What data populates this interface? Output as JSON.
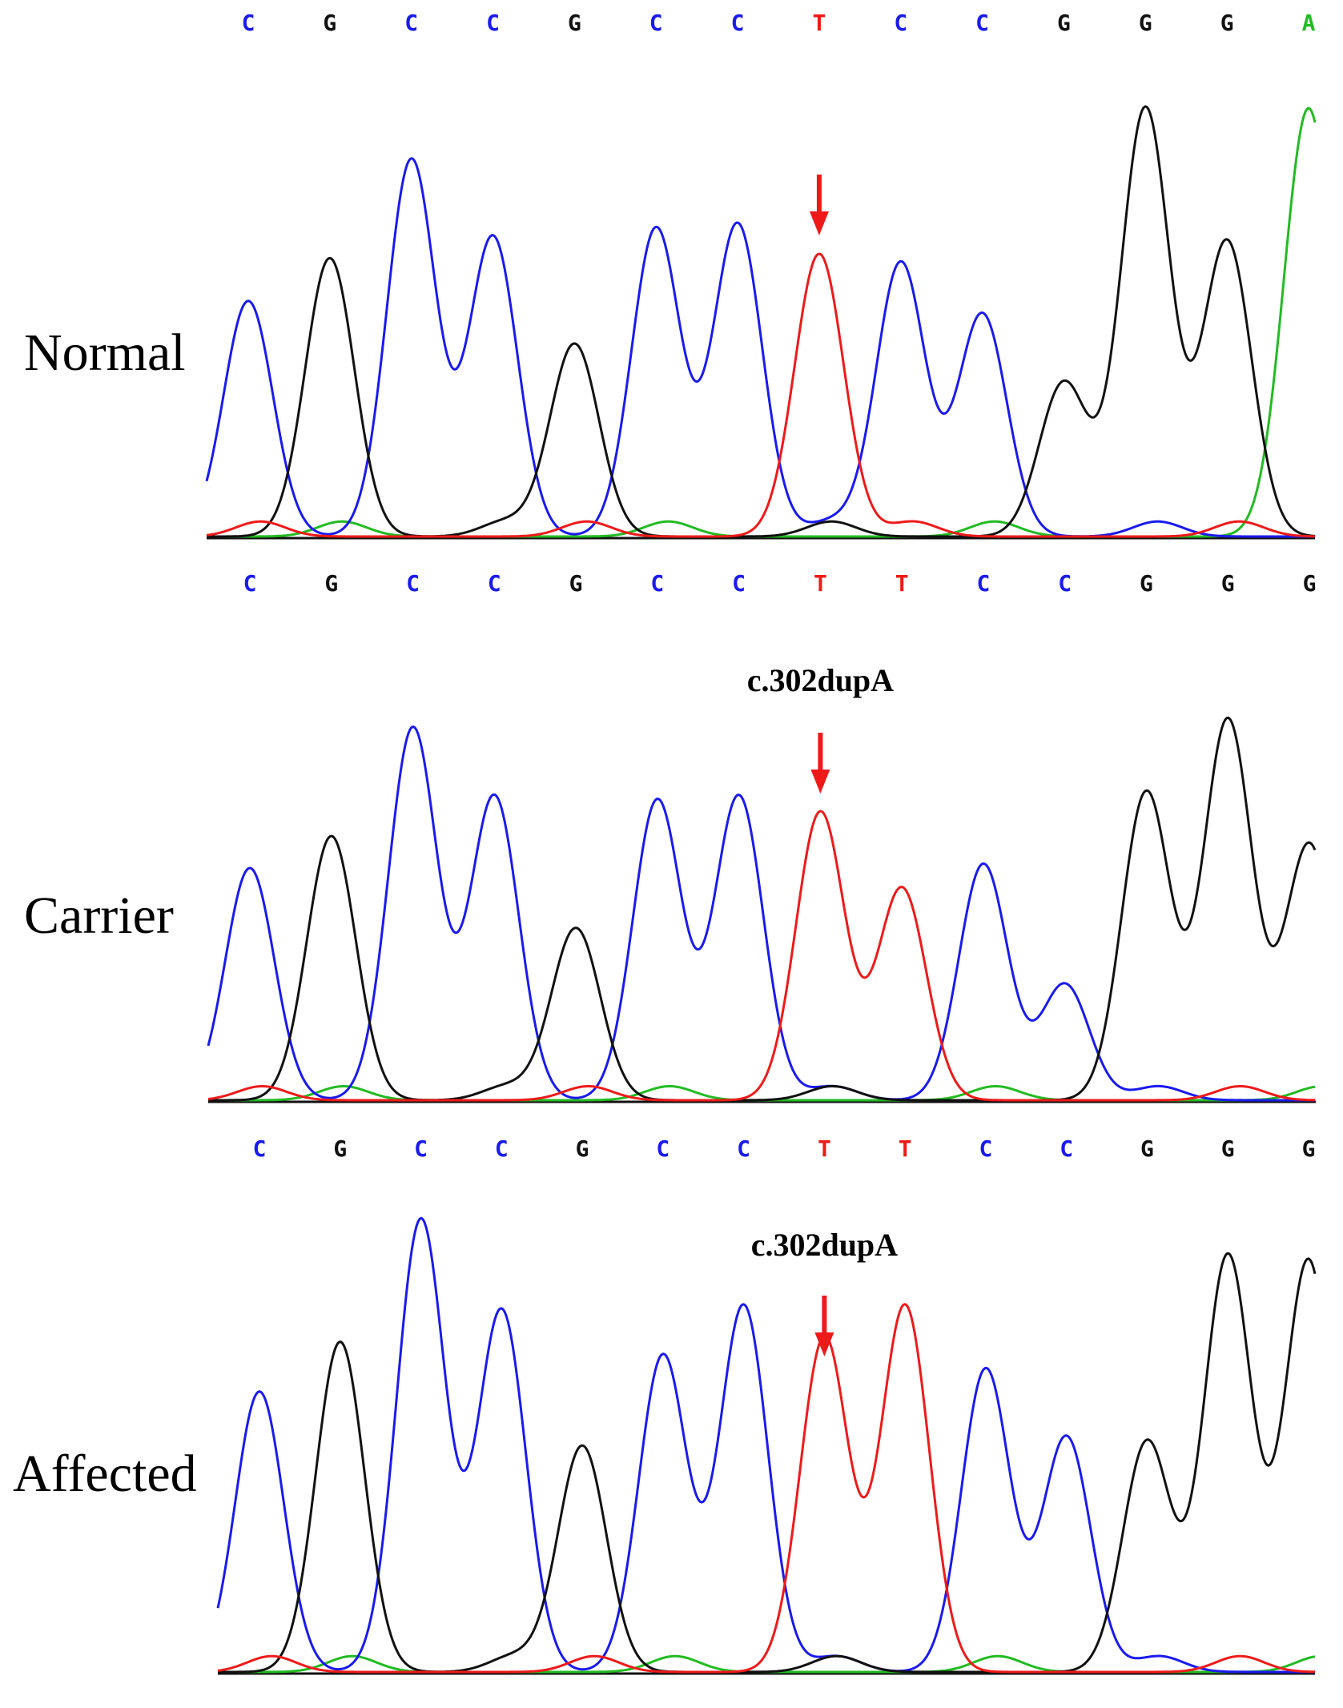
{
  "colors": {
    "A": "#22bb22",
    "C": "#1a1aee",
    "G": "#111111",
    "T": "#ee1a1a",
    "marker": "#ee1a1a",
    "axis": "#111111"
  },
  "panels": [
    {
      "label": "Normal",
      "annotation": "",
      "sequence": [
        "C",
        "G",
        "C",
        "C",
        "G",
        "C",
        "C",
        "T",
        "C",
        "C",
        "G",
        "G",
        "G",
        "A"
      ],
      "peak_heights": [
        0.55,
        0.65,
        0.88,
        0.7,
        0.45,
        0.72,
        0.73,
        0.66,
        0.64,
        0.52,
        0.36,
        1.0,
        0.69,
        1.0
      ],
      "marker_index": 7
    },
    {
      "label": "Carrier",
      "annotation": "c.302dupA",
      "sequence": [
        "C",
        "G",
        "C",
        "C",
        "G",
        "C",
        "C",
        "T",
        "T",
        "C",
        "C",
        "G",
        "G",
        "G"
      ],
      "peak_heights": [
        0.58,
        0.66,
        0.93,
        0.76,
        0.43,
        0.75,
        0.76,
        0.72,
        0.53,
        0.59,
        0.29,
        0.77,
        0.95,
        0.64
      ],
      "marker_index": 7
    },
    {
      "label": "Affected",
      "annotation": "c.302dupA",
      "sequence": [
        "C",
        "G",
        "C",
        "C",
        "G",
        "C",
        "C",
        "T",
        "T",
        "C",
        "C",
        "G",
        "G",
        "G"
      ],
      "peak_heights": [
        0.62,
        0.73,
        1.0,
        0.8,
        0.5,
        0.7,
        0.81,
        0.74,
        0.81,
        0.67,
        0.52,
        0.51,
        0.92,
        0.91
      ],
      "marker_index": 7
    }
  ]
}
